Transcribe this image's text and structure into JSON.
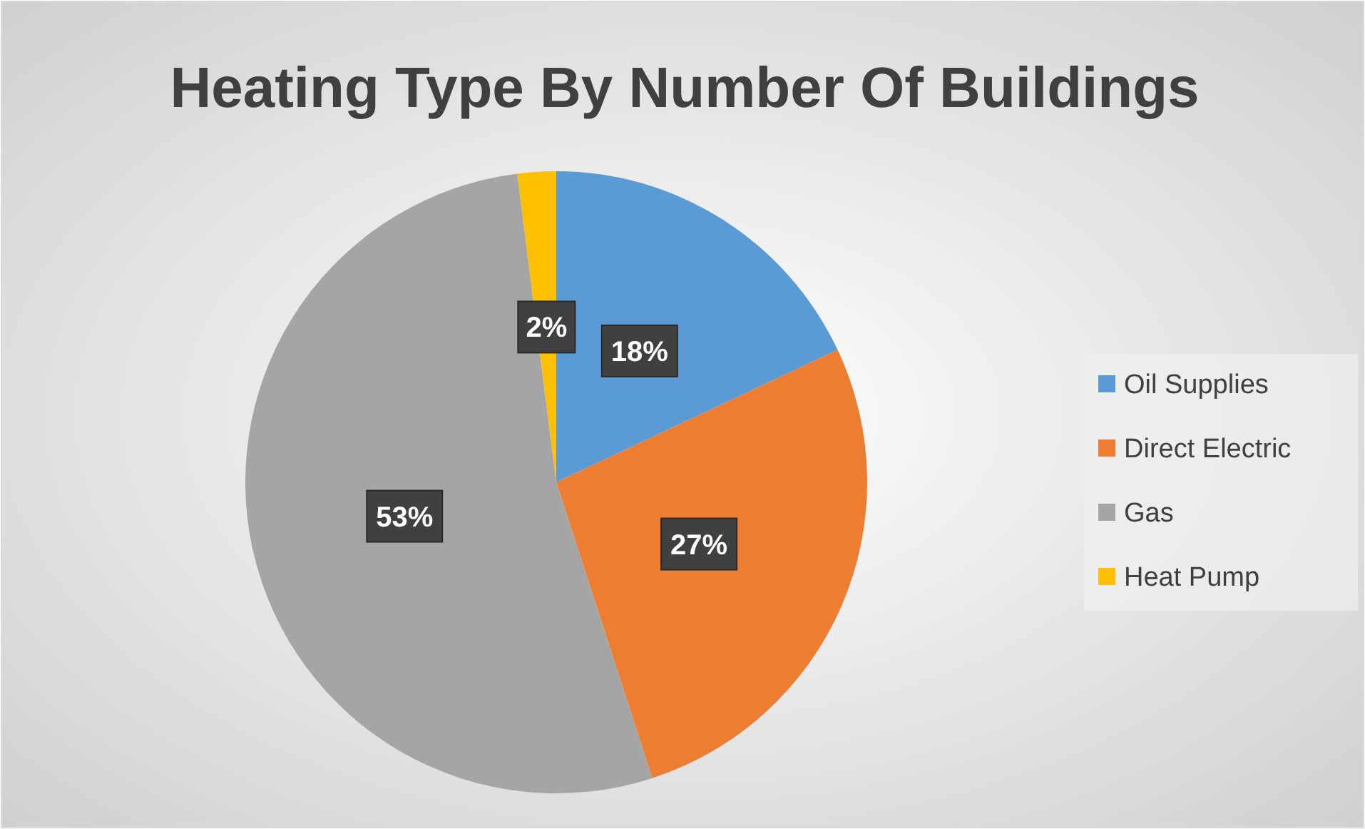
{
  "chart_data": {
    "type": "pie",
    "title": "Heating Type By Number Of Buildings",
    "categories": [
      "Oil Supplies",
      "Direct Electric",
      "Gas",
      "Heat Pump"
    ],
    "values": [
      18,
      27,
      53,
      2
    ],
    "colors": [
      "#5b9bd5",
      "#ed7d31",
      "#a5a5a5",
      "#ffc000"
    ],
    "value_labels": [
      "18%",
      "27%",
      "53%",
      "2%"
    ],
    "legend": "right"
  }
}
